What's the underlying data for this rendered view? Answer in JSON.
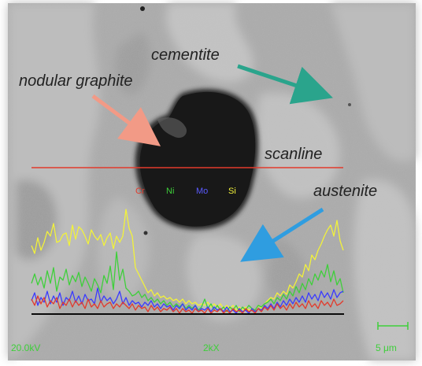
{
  "labels": {
    "cementite": "cementite",
    "nodular_graphite": "nodular graphite",
    "scanline": "scanline",
    "austenite": "austenite"
  },
  "legend": {
    "cr": "Cr",
    "ni": "Ni",
    "mo": "Mo",
    "si": "Si"
  },
  "info_bar": {
    "voltage": "20.0kV",
    "magnification": "2kX",
    "scale": "5 μm"
  },
  "colors": {
    "cr": "#e23b2c",
    "ni": "#3ecf3a",
    "mo": "#3a3aff",
    "si": "#f2f23a",
    "scanline": "#e23b2c",
    "cementite_arrow": "#2aa48c",
    "graphite_arrow": "#f29a86",
    "austenite_arrow": "#2f9de0",
    "info_text": "#3ecf3a"
  }
}
